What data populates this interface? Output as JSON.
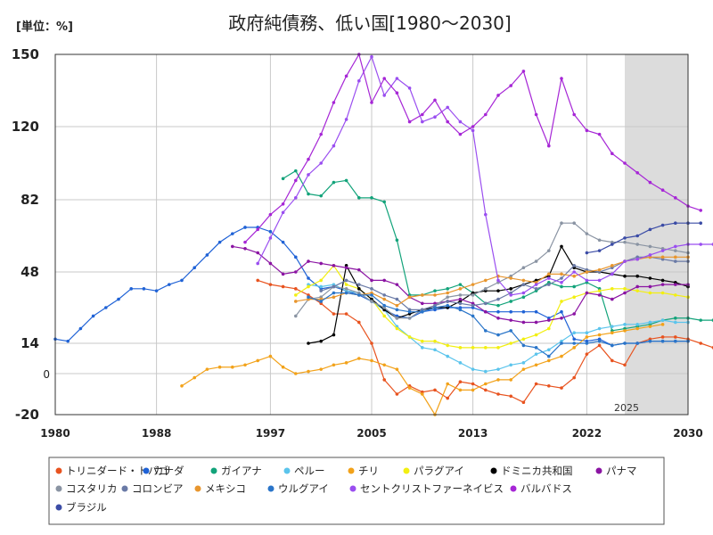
{
  "chart_data": {
    "type": "line",
    "title": "政府純債務、低い国[1980～2030]",
    "unit_label": "[単位：%]",
    "xlim": [
      1980,
      2030
    ],
    "ylim": [
      -20,
      150
    ],
    "x_ticks": [
      1980,
      1988,
      1997,
      2005,
      2013,
      2022,
      2030
    ],
    "y_ticks": [
      -20,
      0,
      14,
      48,
      82,
      120,
      150
    ],
    "forecast_start": 2025,
    "forecast_label": "2025",
    "grid": true,
    "legend_position": "bottom",
    "series": [
      {
        "name": "トリニダード・トバゴ",
        "color": "#e8531f",
        "start": 1996,
        "values": [
          44,
          42,
          41,
          40,
          37,
          33,
          28,
          28,
          24,
          14,
          -3,
          -10,
          -6,
          -9,
          -8,
          -12,
          -4,
          -5,
          -8,
          -10,
          -11,
          -14,
          -5,
          -6,
          -7,
          -2,
          9,
          13,
          6,
          4,
          14,
          16,
          17,
          17,
          16,
          14,
          12
        ]
      },
      {
        "name": "カナダ",
        "color": "#1f62d6",
        "start": 1980,
        "values": [
          16,
          15,
          21,
          27,
          31,
          35,
          40,
          40,
          39,
          42,
          44,
          50,
          56,
          62,
          66,
          69,
          69,
          67,
          62,
          55,
          45,
          40,
          41,
          39,
          37,
          34,
          30,
          27,
          26,
          29,
          30,
          31,
          31,
          31,
          29,
          29,
          29,
          29,
          29,
          26,
          29,
          16,
          15,
          16,
          13,
          14,
          14,
          15,
          15,
          15,
          15
        ]
      },
      {
        "name": "ガイアナ",
        "color": "#12a37a",
        "start": 1998,
        "values": [
          93,
          97,
          85,
          84,
          91,
          92,
          83,
          83,
          81,
          63,
          37,
          37,
          39,
          40,
          42,
          38,
          33,
          32,
          34,
          36,
          39,
          43,
          41,
          41,
          43,
          40,
          20,
          21,
          22,
          23,
          25,
          26,
          26,
          25,
          25,
          24,
          24,
          23
        ]
      },
      {
        "name": "ペルー",
        "color": "#5bc4ec",
        "start": 2000,
        "values": [
          42,
          41,
          42,
          39,
          38,
          34,
          30,
          22,
          17,
          12,
          11,
          8,
          5,
          2,
          1,
          2,
          4,
          5,
          9,
          11,
          15,
          19,
          19,
          21,
          22,
          23,
          23,
          24,
          25,
          24,
          24
        ]
      },
      {
        "name": "チリ",
        "color": "#f2a21a",
        "start": 1990,
        "values": [
          -6,
          -2,
          2,
          3,
          3,
          4,
          6,
          8,
          3,
          0,
          1,
          2,
          4,
          5,
          7,
          6,
          4,
          2,
          -7,
          -10,
          -20,
          -5,
          -8,
          -8,
          -5,
          -3,
          -3,
          2,
          4,
          6,
          8,
          12,
          17,
          18,
          19,
          20,
          21,
          22,
          23
        ]
      },
      {
        "name": "パラグアイ",
        "color": "#f2ef12",
        "start": 1999,
        "values": [
          37,
          41,
          44,
          51,
          42,
          40,
          35,
          27,
          21,
          17,
          15,
          15,
          13,
          12,
          12,
          12,
          12,
          14,
          16,
          18,
          21,
          34,
          36,
          38,
          39,
          40,
          40,
          39,
          38,
          38,
          37,
          36
        ]
      },
      {
        "name": "ドミニカ共和国",
        "color": "#000000",
        "start": 2000,
        "values": [
          14,
          15,
          18,
          51,
          40,
          35,
          30,
          26,
          28,
          30,
          31,
          31,
          34,
          38,
          39,
          39,
          40,
          42,
          44,
          46,
          60,
          50,
          48,
          48,
          47,
          46,
          46,
          45,
          44,
          43,
          41
        ]
      },
      {
        "name": "パナマ",
        "color": "#8b14a3",
        "start": 1994,
        "values": [
          60,
          59,
          57,
          52,
          47,
          48,
          53,
          52,
          51,
          50,
          49,
          44,
          44,
          42,
          36,
          33,
          33,
          34,
          35,
          33,
          29,
          26,
          25,
          24,
          24,
          25,
          26,
          28,
          38,
          37,
          35,
          38,
          41,
          41,
          42,
          42,
          42
        ]
      },
      {
        "name": "コスタリカ",
        "color": "#8a94a3",
        "start": 1999,
        "values": [
          27,
          35,
          36,
          41,
          40,
          38,
          34,
          31,
          26,
          26,
          30,
          32,
          36,
          37,
          37,
          40,
          43,
          46,
          50,
          53,
          58,
          71,
          71,
          66,
          63,
          62,
          62,
          61,
          60,
          59,
          58,
          57
        ]
      },
      {
        "name": "コロンビア",
        "color": "#6a7aa6",
        "start": 2001,
        "values": [
          39,
          41,
          44,
          42,
          40,
          37,
          35,
          30,
          30,
          32,
          34,
          33,
          32,
          33,
          35,
          38,
          42,
          40,
          42,
          45,
          51,
          49,
          48,
          50,
          53,
          55,
          55,
          54,
          53,
          53
        ]
      },
      {
        "name": "メキシコ",
        "color": "#e8962e",
        "start": 1999,
        "values": [
          34,
          35,
          35,
          36,
          38,
          37,
          38,
          35,
          32,
          36,
          37,
          37,
          38,
          40,
          42,
          44,
          46,
          45,
          44,
          43,
          47,
          47,
          46,
          48,
          49,
          51,
          53,
          54,
          55,
          55,
          55,
          55
        ]
      },
      {
        "name": "ウルグアイ",
        "color": "#2a75c9",
        "start": 2000,
        "values": [
          36,
          34,
          38,
          38,
          37,
          37,
          32,
          30,
          29,
          29,
          31,
          32,
          30,
          27,
          20,
          18,
          20,
          13,
          12,
          8,
          14,
          14,
          14,
          15,
          13,
          14,
          14,
          15,
          15,
          15,
          15
        ]
      },
      {
        "name": "セントクリストファーネイビス",
        "color": "#9a4ef0",
        "start": 1996,
        "values": [
          52,
          64,
          76,
          83,
          95,
          101,
          110,
          123,
          139,
          149,
          133,
          140,
          136,
          122,
          124,
          128,
          122,
          118,
          75,
          44,
          37,
          38,
          42,
          45,
          43,
          48,
          44,
          44,
          47,
          53,
          54,
          56,
          58,
          60,
          61,
          61,
          61
        ]
      },
      {
        "name": "バルバドス",
        "color": "#a626d6",
        "start": 1995,
        "values": [
          62,
          68,
          75,
          80,
          92,
          103,
          116,
          130,
          141,
          151,
          130,
          140,
          134,
          122,
          125,
          131,
          122,
          116,
          120,
          125,
          133,
          137,
          143,
          125,
          110,
          140,
          125,
          118,
          116,
          106,
          101,
          96,
          91,
          87,
          83,
          79,
          77
        ]
      },
      {
        "name": "ブラジル",
        "color": "#3b4ca6",
        "start": 2022,
        "values": [
          57,
          58,
          61,
          64,
          65,
          68,
          70,
          71,
          71,
          71
        ]
      }
    ]
  }
}
